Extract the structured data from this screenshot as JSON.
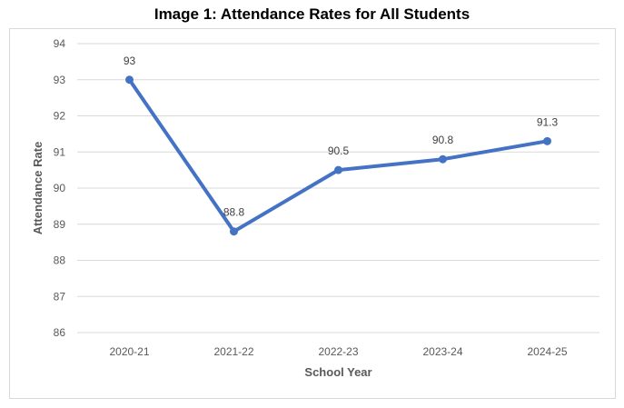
{
  "chart_data": {
    "type": "line",
    "title": "Image 1: Attendance Rates for All Students",
    "xlabel": "School Year",
    "ylabel": "Attendance Rate",
    "categories": [
      "2020-21",
      "2021-22",
      "2022-23",
      "2023-24",
      "2024-25"
    ],
    "series": [
      {
        "values": [
          93,
          88.8,
          90.5,
          90.8,
          91.3
        ],
        "data_labels": [
          "93",
          "88.8",
          "90.5",
          "90.8",
          "91.3"
        ],
        "color": "#4472c4"
      }
    ],
    "yticks": [
      "86",
      "87",
      "88",
      "89",
      "90",
      "91",
      "92",
      "93",
      "94"
    ],
    "ylim": [
      86,
      94
    ],
    "grid": true,
    "legend": "none"
  },
  "colors": {
    "gridline": "#d9d9d9",
    "series": "#4472c4"
  }
}
